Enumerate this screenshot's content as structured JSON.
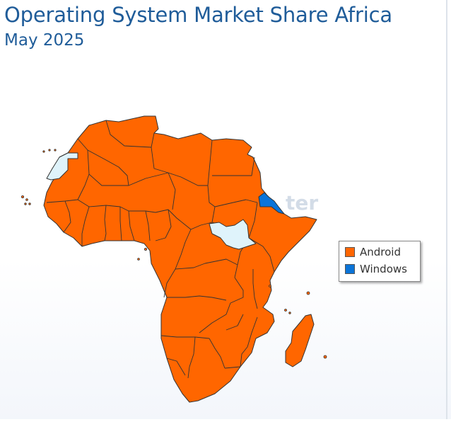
{
  "title": "Operating System Market Share Africa",
  "subtitle": "May 2025",
  "watermark": "ter",
  "legend": {
    "items": [
      {
        "label": "Android",
        "color": "#ff6600"
      },
      {
        "label": "Windows",
        "color": "#0b74d8"
      }
    ]
  },
  "colors": {
    "android": "#ff6600",
    "windows": "#0b74d8",
    "no_data": "#dff3fb",
    "border": "#333333",
    "title": "#1f5c99"
  },
  "regions": [
    {
      "name": "Western Sahara",
      "leader": "none"
    },
    {
      "name": "South Sudan",
      "leader": "none"
    },
    {
      "name": "Eritrea",
      "leader": "Windows"
    },
    {
      "name": "Rest of Africa",
      "leader": "Android"
    }
  ]
}
